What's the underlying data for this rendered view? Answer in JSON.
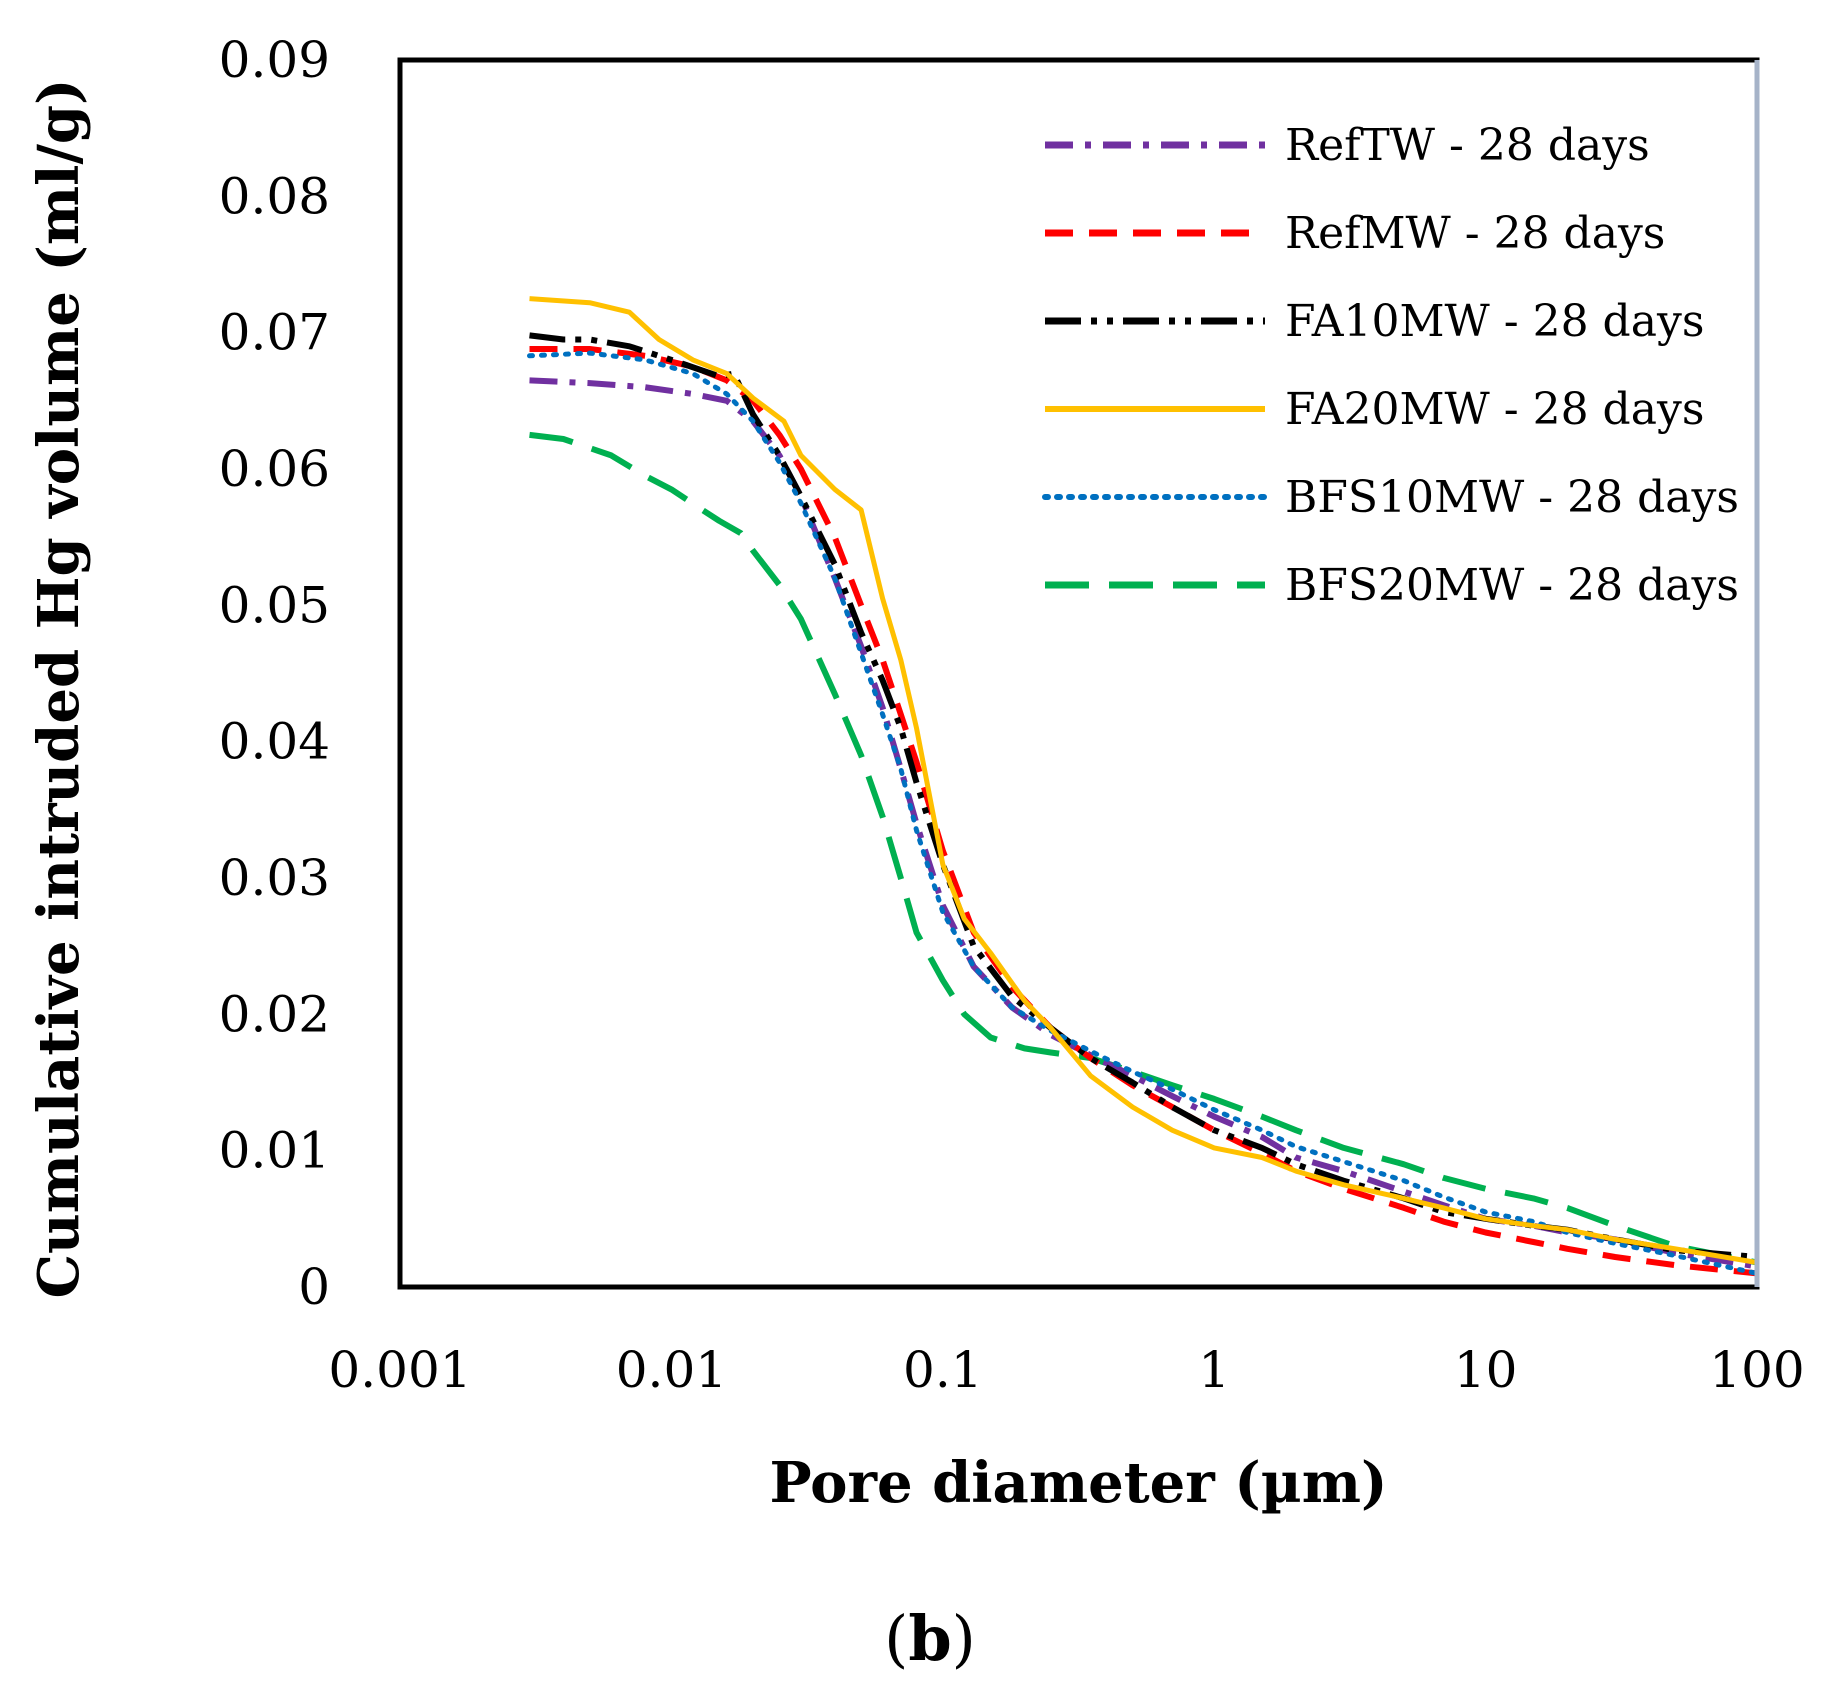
{
  "chart_data": {
    "type": "line",
    "title": "",
    "xlabel": "Pore diameter  (µm)",
    "ylabel": "Cumulative intruded Hg volume  (ml/g)",
    "xscale": "log",
    "xlim": [
      0.001,
      100
    ],
    "ylim": [
      0,
      0.09
    ],
    "x_tick_labels": [
      "0.001",
      "0.01",
      "0.1",
      "1",
      "10",
      "100"
    ],
    "y_tick_labels": [
      "0",
      "0.01",
      "0.02",
      "0.03",
      "0.04",
      "0.05",
      "0.06",
      "0.07",
      "0.08",
      "0.09"
    ],
    "legend_position": "top-right",
    "panel_label": {
      "open": "(",
      "letter": "b",
      "close": ")"
    },
    "series": [
      {
        "name": "RefTW - 28 days",
        "color": "#7030a0",
        "style": "dash-dot",
        "x": [
          0.003,
          0.005,
          0.008,
          0.012,
          0.016,
          0.02,
          0.025,
          0.03,
          0.04,
          0.05,
          0.06,
          0.07,
          0.08,
          0.1,
          0.13,
          0.18,
          0.25,
          0.35,
          0.5,
          0.7,
          1,
          1.5,
          2,
          3,
          5,
          7,
          10,
          15,
          20,
          30,
          50,
          100
        ],
        "y": [
          0.0665,
          0.0663,
          0.066,
          0.0655,
          0.065,
          0.0635,
          0.061,
          0.058,
          0.052,
          0.047,
          0.0425,
          0.038,
          0.034,
          0.028,
          0.0235,
          0.0205,
          0.0185,
          0.017,
          0.0155,
          0.014,
          0.0125,
          0.011,
          0.0095,
          0.0085,
          0.007,
          0.006,
          0.005,
          0.0045,
          0.004,
          0.0035,
          0.0025,
          0.0015
        ]
      },
      {
        "name": "RefMW - 28 days",
        "color": "#ff0000",
        "style": "dash",
        "x": [
          0.003,
          0.005,
          0.008,
          0.012,
          0.016,
          0.02,
          0.025,
          0.03,
          0.04,
          0.05,
          0.06,
          0.07,
          0.08,
          0.1,
          0.13,
          0.18,
          0.25,
          0.35,
          0.5,
          0.7,
          1,
          1.5,
          2,
          3,
          5,
          7,
          10,
          15,
          20,
          30,
          50,
          100
        ],
        "y": [
          0.0688,
          0.0688,
          0.0683,
          0.0675,
          0.0665,
          0.065,
          0.0625,
          0.06,
          0.055,
          0.05,
          0.046,
          0.042,
          0.0385,
          0.032,
          0.026,
          0.022,
          0.019,
          0.0168,
          0.0148,
          0.0132,
          0.0115,
          0.0098,
          0.0085,
          0.0072,
          0.0058,
          0.0048,
          0.004,
          0.0033,
          0.0028,
          0.0022,
          0.0016,
          0.001
        ]
      },
      {
        "name": "FA10MW - 28 days",
        "color": "#000000",
        "style": "dash-dot-dot",
        "x": [
          0.003,
          0.004,
          0.005,
          0.007,
          0.01,
          0.015,
          0.017,
          0.02,
          0.025,
          0.03,
          0.04,
          0.05,
          0.06,
          0.07,
          0.08,
          0.1,
          0.13,
          0.18,
          0.25,
          0.35,
          0.5,
          0.7,
          1,
          1.5,
          2,
          3,
          5,
          7,
          10,
          15,
          20,
          30,
          50,
          100
        ],
        "y": [
          0.0698,
          0.0695,
          0.0695,
          0.069,
          0.068,
          0.0668,
          0.067,
          0.064,
          0.061,
          0.058,
          0.053,
          0.048,
          0.0445,
          0.041,
          0.037,
          0.031,
          0.025,
          0.0213,
          0.019,
          0.0168,
          0.015,
          0.0132,
          0.0115,
          0.0102,
          0.009,
          0.0078,
          0.0065,
          0.0055,
          0.005,
          0.0045,
          0.0042,
          0.0035,
          0.0027,
          0.0022
        ]
      },
      {
        "name": "FA20MW - 28 days",
        "color": "#ffc000",
        "style": "solid",
        "x": [
          0.003,
          0.005,
          0.007,
          0.009,
          0.012,
          0.016,
          0.02,
          0.026,
          0.03,
          0.04,
          0.05,
          0.06,
          0.07,
          0.08,
          0.1,
          0.12,
          0.15,
          0.2,
          0.25,
          0.35,
          0.5,
          0.7,
          1,
          1.5,
          2,
          3,
          5,
          7,
          10,
          15,
          20,
          30,
          50,
          100
        ],
        "y": [
          0.0725,
          0.0722,
          0.0715,
          0.0695,
          0.068,
          0.067,
          0.0652,
          0.0635,
          0.061,
          0.0585,
          0.057,
          0.0505,
          0.046,
          0.041,
          0.031,
          0.027,
          0.0245,
          0.021,
          0.019,
          0.0155,
          0.0132,
          0.0115,
          0.0102,
          0.0095,
          0.0085,
          0.0075,
          0.0065,
          0.0058,
          0.005,
          0.0045,
          0.0042,
          0.0035,
          0.0028,
          0.0018
        ]
      },
      {
        "name": "BFS10MW - 28 days",
        "color": "#0070c0",
        "style": "dot",
        "x": [
          0.003,
          0.005,
          0.008,
          0.012,
          0.016,
          0.02,
          0.025,
          0.03,
          0.04,
          0.05,
          0.06,
          0.07,
          0.08,
          0.1,
          0.13,
          0.18,
          0.25,
          0.35,
          0.5,
          0.7,
          1,
          1.5,
          2,
          3,
          5,
          7,
          10,
          15,
          20,
          30,
          50,
          100
        ],
        "y": [
          0.0683,
          0.0685,
          0.068,
          0.067,
          0.0655,
          0.0635,
          0.0605,
          0.0575,
          0.052,
          0.0465,
          0.042,
          0.038,
          0.0335,
          0.0275,
          0.0235,
          0.0205,
          0.0188,
          0.0173,
          0.0158,
          0.0145,
          0.013,
          0.0115,
          0.0103,
          0.0092,
          0.0078,
          0.0066,
          0.0055,
          0.0048,
          0.004,
          0.0032,
          0.0023,
          0.001
        ]
      },
      {
        "name": "BFS20MW - 28 days",
        "color": "#00b050",
        "style": "long-dash",
        "x": [
          0.003,
          0.004,
          0.006,
          0.008,
          0.01,
          0.013,
          0.015,
          0.018,
          0.02,
          0.025,
          0.03,
          0.04,
          0.05,
          0.06,
          0.07,
          0.08,
          0.1,
          0.12,
          0.15,
          0.2,
          0.25,
          0.35,
          0.5,
          0.7,
          1,
          1.5,
          2,
          3,
          5,
          7,
          10,
          15,
          20,
          30,
          50,
          100
        ],
        "y": [
          0.0625,
          0.0622,
          0.061,
          0.0595,
          0.0585,
          0.057,
          0.0562,
          0.0553,
          0.054,
          0.0515,
          0.049,
          0.0435,
          0.039,
          0.0345,
          0.03,
          0.026,
          0.0225,
          0.02,
          0.0183,
          0.0175,
          0.0172,
          0.0168,
          0.0158,
          0.0148,
          0.0138,
          0.0125,
          0.0115,
          0.0102,
          0.009,
          0.008,
          0.0072,
          0.0065,
          0.0058,
          0.0045,
          0.003,
          0.0018
        ]
      }
    ]
  }
}
